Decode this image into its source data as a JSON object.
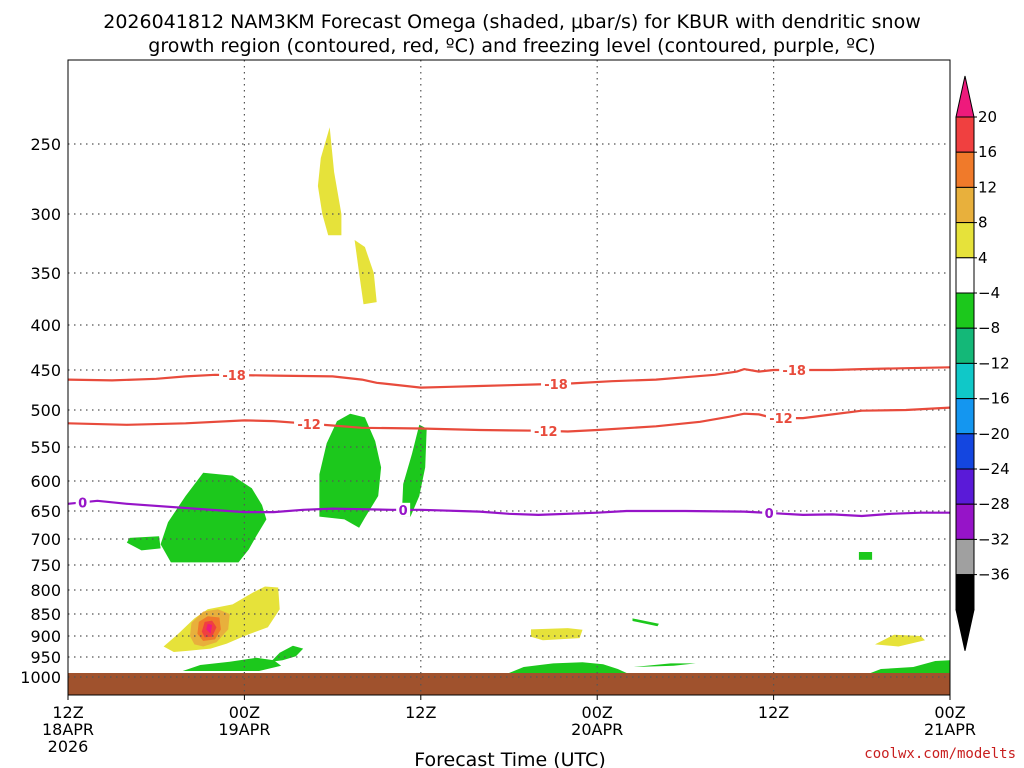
{
  "chart_data": {
    "type": "heatmap",
    "title_line1": "2026041812 NAM3KM Forecast Omega (shaded, μbar/s) for KBUR with dendritic snow",
    "title_line2": "growth region (contoured, red, ºC) and freezing level (contoured, purple, ºC)",
    "xlabel": "Forecast Time (UTC)",
    "credit": "coolwx.com/modelts",
    "x_range_hours": [
      0,
      60
    ],
    "x_ticks": [
      {
        "hour": 0,
        "lines": [
          "12Z",
          "18APR",
          "2026"
        ]
      },
      {
        "hour": 12,
        "lines": [
          "00Z",
          "19APR"
        ]
      },
      {
        "hour": 24,
        "lines": [
          "12Z"
        ]
      },
      {
        "hour": 36,
        "lines": [
          "00Z",
          "20APR"
        ]
      },
      {
        "hour": 48,
        "lines": [
          "12Z"
        ]
      },
      {
        "hour": 60,
        "lines": [
          "00Z",
          "21APR"
        ]
      }
    ],
    "y_axis": "pressure (mb), inverted",
    "y_range_mb": [
      1030,
      200
    ],
    "y_ticks": [
      250,
      300,
      350,
      400,
      450,
      500,
      550,
      600,
      650,
      700,
      750,
      800,
      850,
      900,
      950,
      1000
    ],
    "grid": true,
    "colorbar": {
      "labels": [
        "20",
        "16",
        "12",
        "8",
        "4",
        "−4",
        "−8",
        "−12",
        "−16",
        "−20",
        "−24",
        "−28",
        "−32",
        "−36"
      ],
      "colors": [
        "#ee1a7c",
        "#f04040",
        "#f07a2a",
        "#e8b03c",
        "#e6e23a",
        "#ffffff",
        "#1cc81c",
        "#14b878",
        "#10c8c8",
        "#1496f0",
        "#1446e0",
        "#5a1ad8",
        "#9614c8",
        "#a0a0a0",
        "#000000"
      ],
      "top_triangle_color": "#ee1a7c",
      "bottom_triangle_color": "#000000"
    },
    "contours": [
      {
        "name": "-18",
        "color": "#e84b3c",
        "labels_at_hours": [
          11.3,
          33.2,
          49.4
        ],
        "points": [
          [
            0,
            462
          ],
          [
            3,
            463
          ],
          [
            6,
            461
          ],
          [
            8,
            458
          ],
          [
            10,
            456
          ],
          [
            14,
            457
          ],
          [
            18,
            458
          ],
          [
            20,
            462
          ],
          [
            21,
            466
          ],
          [
            22,
            468
          ],
          [
            24,
            472
          ],
          [
            26,
            471
          ],
          [
            28,
            470
          ],
          [
            30,
            469
          ],
          [
            32,
            468
          ],
          [
            34,
            467
          ],
          [
            37,
            464
          ],
          [
            40,
            462
          ],
          [
            42,
            459
          ],
          [
            44,
            456
          ],
          [
            45.5,
            452
          ],
          [
            46,
            449
          ],
          [
            47,
            452
          ],
          [
            48,
            450
          ],
          [
            50,
            450
          ],
          [
            52,
            450
          ],
          [
            54,
            449
          ],
          [
            57,
            448
          ],
          [
            60,
            447
          ]
        ]
      },
      {
        "name": "-12",
        "color": "#e84b3c",
        "labels_at_hours": [
          16.4,
          32.5,
          48.5
        ],
        "points": [
          [
            0,
            518
          ],
          [
            4,
            520
          ],
          [
            8,
            518
          ],
          [
            12,
            514
          ],
          [
            14,
            515
          ],
          [
            16,
            518
          ],
          [
            18,
            521
          ],
          [
            20,
            524
          ],
          [
            24,
            525
          ],
          [
            28,
            527
          ],
          [
            32,
            528
          ],
          [
            34,
            529
          ],
          [
            36,
            527
          ],
          [
            40,
            522
          ],
          [
            43,
            516
          ],
          [
            45,
            509
          ],
          [
            46,
            505
          ],
          [
            47,
            506
          ],
          [
            48,
            511
          ],
          [
            50,
            511
          ],
          [
            52,
            506
          ],
          [
            54,
            501
          ],
          [
            57,
            500
          ],
          [
            60,
            497
          ]
        ]
      },
      {
        "name": "0",
        "color": "#9614c8",
        "labels_at_hours": [
          1.0,
          22.8,
          47.7
        ],
        "points": [
          [
            0,
            638
          ],
          [
            2,
            633
          ],
          [
            4,
            638
          ],
          [
            8,
            645
          ],
          [
            12,
            652
          ],
          [
            14,
            652
          ],
          [
            16,
            648
          ],
          [
            18,
            646
          ],
          [
            20,
            647
          ],
          [
            22,
            648
          ],
          [
            24,
            648
          ],
          [
            28,
            651
          ],
          [
            30,
            655
          ],
          [
            32,
            657
          ],
          [
            36,
            653
          ],
          [
            38,
            650
          ],
          [
            42,
            650
          ],
          [
            46,
            651
          ],
          [
            48,
            654
          ],
          [
            50,
            657
          ],
          [
            52,
            656
          ],
          [
            54,
            659
          ],
          [
            56,
            655
          ],
          [
            58,
            653
          ],
          [
            60,
            653
          ]
        ]
      }
    ],
    "shaded_regions": [
      {
        "value_range": "4 to 8",
        "color": "#e6e23a",
        "points": [
          [
            17.8,
            240
          ],
          [
            17.2,
            260
          ],
          [
            17,
            280
          ],
          [
            17.3,
            300
          ],
          [
            17.7,
            318
          ],
          [
            18.6,
            318
          ],
          [
            18.6,
            300
          ],
          [
            18.1,
            270
          ]
        ]
      },
      {
        "value_range": "4 to 8",
        "color": "#e6e23a",
        "points": [
          [
            19.5,
            322
          ],
          [
            19.8,
            350
          ],
          [
            20.1,
            380
          ],
          [
            21,
            378
          ],
          [
            20.8,
            350
          ],
          [
            20.2,
            328
          ]
        ]
      },
      {
        "value_range": "-4 to -8",
        "color": "#1cc81c",
        "points": [
          [
            7,
            745
          ],
          [
            6.3,
            710
          ],
          [
            6.8,
            670
          ],
          [
            8,
            625
          ],
          [
            9.2,
            588
          ],
          [
            11.2,
            592
          ],
          [
            12.5,
            612
          ],
          [
            13.2,
            640
          ],
          [
            13.5,
            665
          ],
          [
            12.8,
            695
          ],
          [
            12.3,
            720
          ],
          [
            11.6,
            745
          ]
        ]
      },
      {
        "value_range": "-4 to -8",
        "color": "#1cc81c",
        "points": [
          [
            4,
            707
          ],
          [
            4.2,
            698
          ],
          [
            6.2,
            695
          ],
          [
            6.3,
            718
          ],
          [
            5,
            722
          ]
        ]
      },
      {
        "value_range": "-4 to -8",
        "color": "#1cc81c",
        "points": [
          [
            17.1,
            660
          ],
          [
            17.1,
            590
          ],
          [
            17.6,
            545
          ],
          [
            18.3,
            515
          ],
          [
            19.2,
            505
          ],
          [
            20.2,
            510
          ],
          [
            20.9,
            542
          ],
          [
            21.3,
            580
          ],
          [
            21.1,
            625
          ],
          [
            20.2,
            662
          ],
          [
            19.8,
            680
          ],
          [
            18.8,
            665
          ]
        ]
      },
      {
        "value_range": "-4 to -8",
        "color": "#1cc81c",
        "points": [
          [
            22.7,
            660
          ],
          [
            22.8,
            605
          ],
          [
            23.4,
            560
          ],
          [
            23.9,
            520
          ],
          [
            24.4,
            525
          ],
          [
            24.3,
            580
          ],
          [
            23.9,
            625
          ],
          [
            23.3,
            660
          ]
        ]
      },
      {
        "value_range": "-4 to -8",
        "color": "#1cc81c",
        "points": [
          [
            53.8,
            740
          ],
          [
            53.8,
            725
          ],
          [
            54.7,
            725
          ],
          [
            54.7,
            740
          ]
        ]
      },
      {
        "value_range": "-4 to -8",
        "color": "#1cc81c",
        "points": [
          [
            38.4,
            860
          ],
          [
            40.2,
            872
          ],
          [
            40.1,
            878
          ],
          [
            38.4,
            866
          ]
        ]
      },
      {
        "value_range": "4 to 8",
        "color": "#e6e23a",
        "points": [
          [
            31.5,
            885
          ],
          [
            34,
            882
          ],
          [
            35,
            886
          ],
          [
            34.8,
            905
          ],
          [
            32.3,
            910
          ],
          [
            31.5,
            902
          ]
        ]
      },
      {
        "value_range": "4 to 8",
        "color": "#e6e23a",
        "points": [
          [
            54.9,
            920
          ],
          [
            56.2,
            897
          ],
          [
            58,
            900
          ],
          [
            58.3,
            910
          ],
          [
            56.5,
            925
          ]
        ]
      },
      {
        "value_range": "4 to 8",
        "color": "#e6e23a",
        "points": [
          [
            6.5,
            925
          ],
          [
            7.5,
            895
          ],
          [
            8.6,
            860
          ],
          [
            9.5,
            840
          ],
          [
            11.2,
            830
          ],
          [
            12.6,
            805
          ],
          [
            13.4,
            793
          ],
          [
            14.3,
            795
          ],
          [
            14.4,
            840
          ],
          [
            13.6,
            880
          ],
          [
            12,
            900
          ],
          [
            10.8,
            918
          ],
          [
            9.7,
            930
          ],
          [
            8.2,
            935
          ],
          [
            7.2,
            938
          ]
        ]
      },
      {
        "value_range": "8 to 12",
        "color": "#e8b03c",
        "points": [
          [
            8.3,
            900
          ],
          [
            8.4,
            870
          ],
          [
            9.2,
            845
          ],
          [
            10.2,
            840
          ],
          [
            11,
            850
          ],
          [
            10.9,
            885
          ],
          [
            10.1,
            915
          ],
          [
            9.2,
            925
          ],
          [
            8.6,
            920
          ]
        ]
      },
      {
        "value_range": "12 to 16",
        "color": "#f07a2a",
        "points": [
          [
            8.8,
            895
          ],
          [
            8.9,
            868
          ],
          [
            9.5,
            855
          ],
          [
            10.3,
            858
          ],
          [
            10.4,
            885
          ],
          [
            10,
            908
          ],
          [
            9.2,
            912
          ]
        ]
      },
      {
        "value_range": "16 to 20",
        "color": "#f04040",
        "points": [
          [
            9.1,
            890
          ],
          [
            9.3,
            868
          ],
          [
            9.8,
            865
          ],
          [
            10.1,
            880
          ],
          [
            9.8,
            902
          ],
          [
            9.3,
            903
          ]
        ]
      },
      {
        "value_range": "20+",
        "color": "#ee1a7c",
        "points": [
          [
            9.4,
            885
          ],
          [
            9.5,
            872
          ],
          [
            9.8,
            875
          ],
          [
            9.7,
            895
          ]
        ]
      },
      {
        "value_range": "-4 to -8",
        "color": "#1cc81c",
        "points": [
          [
            7.8,
            985
          ],
          [
            9,
            970
          ],
          [
            11,
            962
          ],
          [
            12.8,
            952
          ],
          [
            14,
            958
          ],
          [
            14.5,
            972
          ],
          [
            13,
            985
          ]
        ]
      },
      {
        "value_range": "-4 to -8",
        "color": "#1cc81c",
        "points": [
          [
            13.8,
            962
          ],
          [
            14.4,
            940
          ],
          [
            15.3,
            923
          ],
          [
            16,
            930
          ],
          [
            15.5,
            948
          ],
          [
            14.6,
            958
          ]
        ]
      },
      {
        "value_range": "-4 to -8",
        "color": "#1cc81c",
        "points": [
          [
            30,
            990
          ],
          [
            31,
            975
          ],
          [
            33,
            966
          ],
          [
            35,
            963
          ],
          [
            36.4,
            968
          ],
          [
            37.4,
            980
          ],
          [
            38,
            990
          ]
        ]
      },
      {
        "value_range": "-4 to -8",
        "color": "#1cc81c",
        "points": [
          [
            38.5,
            975
          ],
          [
            41,
            966
          ],
          [
            42.7,
            966
          ],
          [
            41.2,
            972
          ]
        ]
      },
      {
        "value_range": "-4 to -8",
        "color": "#1cc81c",
        "points": [
          [
            54.6,
            990
          ],
          [
            55.3,
            980
          ],
          [
            57.5,
            975
          ],
          [
            59,
            960
          ],
          [
            60,
            958
          ],
          [
            60,
            990
          ]
        ]
      }
    ],
    "ground": {
      "color": "#a0522d",
      "top_mb": 990
    }
  }
}
